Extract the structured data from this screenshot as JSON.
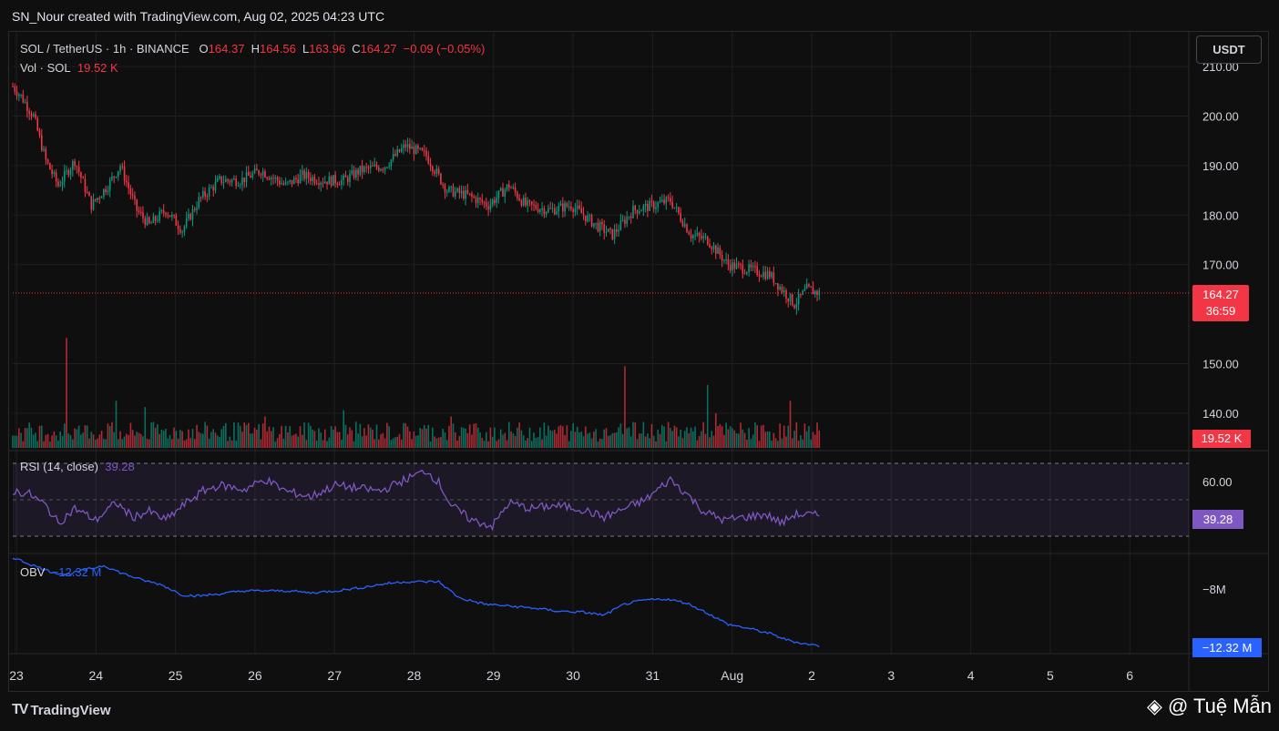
{
  "caption": "SN_Nour created with TradingView.com, Aug 02, 2025 04:23 UTC",
  "legend": {
    "symbol": "SOL / TetherUS · 1h · BINANCE",
    "o_label": "O",
    "o_value": "164.37",
    "h_label": "H",
    "h_value": "164.56",
    "l_label": "L",
    "l_value": "163.96",
    "c_label": "C",
    "c_value": "164.27",
    "change": "−0.09 (−0.05%)",
    "vol_label": "Vol · SOL",
    "vol_value": "19.52 K",
    "rsi_label": "RSI (14, close)",
    "rsi_value": "39.28",
    "obv_label": "OBV",
    "obv_value": "−12.32 M"
  },
  "currency": "USDT",
  "tags": {
    "price": "164.27",
    "countdown": "36:59",
    "volume": "19.52 K",
    "rsi": "39.28",
    "obv": "−12.32 M"
  },
  "branding": {
    "logo_mark": "TV",
    "logo_text": "TradingView",
    "watermark": "@ Tuệ Mẫn"
  },
  "colors": {
    "up": "#089981",
    "down": "#f23645",
    "rsi": "#7e57c2",
    "obv": "#2962ff",
    "grid": "#1f1f1f"
  },
  "chart_data": {
    "type": "candlestick",
    "title": "SOL / TetherUS · 1h · BINANCE",
    "price_axis": {
      "ticks": [
        "210.00",
        "200.00",
        "190.00",
        "180.00",
        "170.00",
        "150.00",
        "140.00"
      ],
      "tick_values": [
        210,
        200,
        190,
        180,
        170,
        150,
        140
      ],
      "range": [
        133,
        217
      ]
    },
    "time_axis": {
      "labels": [
        "23",
        "24",
        "25",
        "26",
        "27",
        "28",
        "29",
        "30",
        "31",
        "Aug",
        "2",
        "3",
        "4",
        "5",
        "6"
      ]
    },
    "price_anchors": [
      [
        0,
        206
      ],
      [
        4,
        204
      ],
      [
        10,
        200
      ],
      [
        16,
        191
      ],
      [
        22,
        186
      ],
      [
        30,
        191
      ],
      [
        38,
        182
      ],
      [
        46,
        186
      ],
      [
        52,
        190
      ],
      [
        60,
        181
      ],
      [
        66,
        178
      ],
      [
        74,
        181
      ],
      [
        82,
        177
      ],
      [
        90,
        183
      ],
      [
        100,
        187
      ],
      [
        110,
        187
      ],
      [
        120,
        189
      ],
      [
        132,
        186
      ],
      [
        140,
        188
      ],
      [
        150,
        187
      ],
      [
        160,
        187
      ],
      [
        168,
        189
      ],
      [
        180,
        190
      ],
      [
        190,
        194
      ],
      [
        200,
        192
      ],
      [
        210,
        185
      ],
      [
        220,
        184
      ],
      [
        230,
        182
      ],
      [
        240,
        186
      ],
      [
        248,
        182
      ],
      [
        260,
        181
      ],
      [
        270,
        182
      ],
      [
        282,
        178
      ],
      [
        290,
        176
      ],
      [
        300,
        181
      ],
      [
        310,
        182
      ],
      [
        318,
        183
      ],
      [
        328,
        176
      ],
      [
        336,
        175
      ],
      [
        346,
        170
      ],
      [
        356,
        169
      ],
      [
        366,
        168
      ],
      [
        372,
        165
      ],
      [
        378,
        162
      ],
      [
        384,
        165
      ],
      [
        390,
        164.27
      ]
    ],
    "volume_spikes": [
      [
        26,
        3.5
      ],
      [
        50,
        1.5
      ],
      [
        64,
        1.3
      ],
      [
        122,
        1.0
      ],
      [
        160,
        1.2
      ],
      [
        212,
        1.0
      ],
      [
        296,
        2.6
      ],
      [
        336,
        2.0
      ],
      [
        340,
        1.1
      ],
      [
        376,
        1.5
      ]
    ],
    "volume_range": [
      0,
      10
    ],
    "rsi": {
      "label": "RSI (14, close)",
      "current": 39.28,
      "band_upper": 70,
      "band_lower": 30,
      "mid": 50,
      "ticks": [
        "60.00"
      ],
      "anchors": [
        [
          0,
          56
        ],
        [
          8,
          54
        ],
        [
          16,
          46
        ],
        [
          22,
          34
        ],
        [
          30,
          44
        ],
        [
          40,
          36
        ],
        [
          50,
          48
        ],
        [
          58,
          38
        ],
        [
          66,
          42
        ],
        [
          74,
          36
        ],
        [
          84,
          48
        ],
        [
          92,
          56
        ],
        [
          100,
          60
        ],
        [
          112,
          57
        ],
        [
          122,
          64
        ],
        [
          132,
          56
        ],
        [
          144,
          52
        ],
        [
          156,
          60
        ],
        [
          166,
          58
        ],
        [
          178,
          56
        ],
        [
          190,
          64
        ],
        [
          200,
          70
        ],
        [
          206,
          62
        ],
        [
          212,
          46
        ],
        [
          222,
          36
        ],
        [
          232,
          32
        ],
        [
          240,
          48
        ],
        [
          250,
          44
        ],
        [
          262,
          46
        ],
        [
          274,
          44
        ],
        [
          286,
          38
        ],
        [
          296,
          44
        ],
        [
          306,
          50
        ],
        [
          318,
          64
        ],
        [
          326,
          54
        ],
        [
          334,
          42
        ],
        [
          344,
          36
        ],
        [
          354,
          38
        ],
        [
          364,
          40
        ],
        [
          372,
          34
        ],
        [
          378,
          40
        ],
        [
          390,
          39.28
        ]
      ]
    },
    "obv": {
      "label": "OBV",
      "current_m": -12.32,
      "ticks": [
        "−8M"
      ],
      "tick_values": [
        -8
      ],
      "range_m": [
        -12.9,
        -3.4
      ],
      "anchors": [
        [
          0,
          -3.6
        ],
        [
          10,
          -4.4
        ],
        [
          18,
          -5.0
        ],
        [
          26,
          -5.3
        ],
        [
          36,
          -4.8
        ],
        [
          44,
          -4.4
        ],
        [
          52,
          -5.1
        ],
        [
          62,
          -5.8
        ],
        [
          72,
          -6.3
        ],
        [
          82,
          -7.3
        ],
        [
          90,
          -7.4
        ],
        [
          100,
          -7.2
        ],
        [
          112,
          -6.9
        ],
        [
          124,
          -6.9
        ],
        [
          134,
          -6.9
        ],
        [
          144,
          -7.1
        ],
        [
          156,
          -6.9
        ],
        [
          168,
          -6.6
        ],
        [
          180,
          -6.2
        ],
        [
          190,
          -6.0
        ],
        [
          206,
          -6.0
        ],
        [
          216,
          -7.6
        ],
        [
          228,
          -8.2
        ],
        [
          240,
          -8.4
        ],
        [
          252,
          -8.6
        ],
        [
          264,
          -8.9
        ],
        [
          276,
          -9.0
        ],
        [
          286,
          -9.3
        ],
        [
          296,
          -8.2
        ],
        [
          306,
          -7.8
        ],
        [
          316,
          -7.7
        ],
        [
          326,
          -8.1
        ],
        [
          336,
          -9.1
        ],
        [
          346,
          -10.2
        ],
        [
          356,
          -10.6
        ],
        [
          366,
          -11.1
        ],
        [
          374,
          -11.7
        ],
        [
          380,
          -12.0
        ],
        [
          390,
          -12.32
        ]
      ]
    },
    "last_price": 164.27
  }
}
